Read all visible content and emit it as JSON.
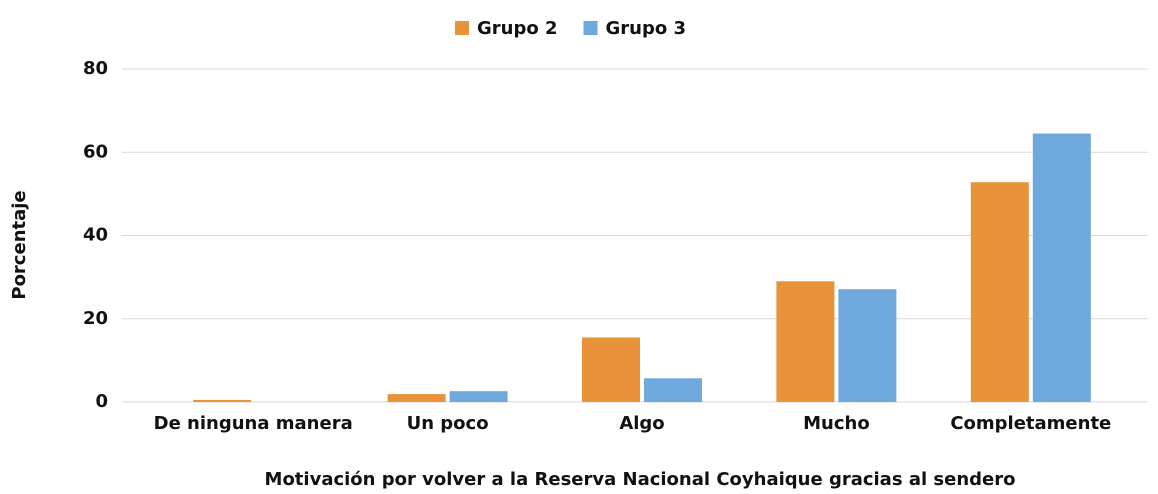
{
  "chart_data": {
    "type": "bar",
    "xlabel": "Motivación por volver a la Reserva Nacional Coyhaique gracias al sendero",
    "ylabel": "Porcentaje",
    "categories": [
      "De ninguna manera",
      "Un poco",
      "Algo",
      "Mucho",
      "Completamente"
    ],
    "series": [
      {
        "name": "Grupo 2",
        "color": "#e8923a",
        "values": [
          0.5,
          1.9,
          15.5,
          29,
          52.8
        ]
      },
      {
        "name": "Grupo 3",
        "color": "#6fa8dc",
        "values": [
          0,
          2.6,
          5.7,
          27.1,
          64.5
        ]
      }
    ],
    "ylim": [
      0,
      80
    ],
    "yticks": [
      0,
      20,
      40,
      60,
      80
    ],
    "grid": true,
    "legend": "top"
  }
}
